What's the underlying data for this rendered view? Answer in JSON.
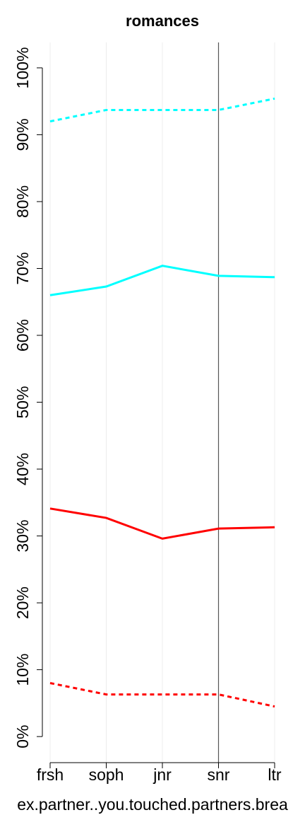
{
  "chart_data": {
    "type": "line",
    "title": "romances",
    "x_label": "ex.partner..you.touched.partners.brea",
    "categories": [
      "frsh",
      "soph",
      "jnr",
      "snr",
      "ltr"
    ],
    "series": [
      {
        "color": "#00ffff",
        "dashed": true,
        "values": [
          92.0,
          93.7,
          93.7,
          93.7,
          95.4
        ]
      },
      {
        "color": "#00ffff",
        "dashed": false,
        "values": [
          66.0,
          67.3,
          70.4,
          68.9,
          68.7
        ]
      },
      {
        "color": "#ff0000",
        "dashed": false,
        "values": [
          34.1,
          32.7,
          29.6,
          31.1,
          31.3
        ]
      },
      {
        "color": "#ff0000",
        "dashed": true,
        "values": [
          8.0,
          6.3,
          6.3,
          6.3,
          4.5
        ]
      }
    ],
    "ylim": [
      -3.9,
      103.8
    ],
    "yticks": [
      {
        "value": 0,
        "label": "0%"
      },
      {
        "value": 10,
        "label": "10%"
      },
      {
        "value": 20,
        "label": "20%"
      },
      {
        "value": 30,
        "label": "30%"
      },
      {
        "value": 40,
        "label": "40%"
      },
      {
        "value": 50,
        "label": "50%"
      },
      {
        "value": 60,
        "label": "60%"
      },
      {
        "value": 70,
        "label": "70%"
      },
      {
        "value": 80,
        "label": "80%"
      },
      {
        "value": 90,
        "label": "90%"
      },
      {
        "value": 100,
        "label": "100%"
      }
    ],
    "grid": true,
    "reference_category": "snr"
  }
}
